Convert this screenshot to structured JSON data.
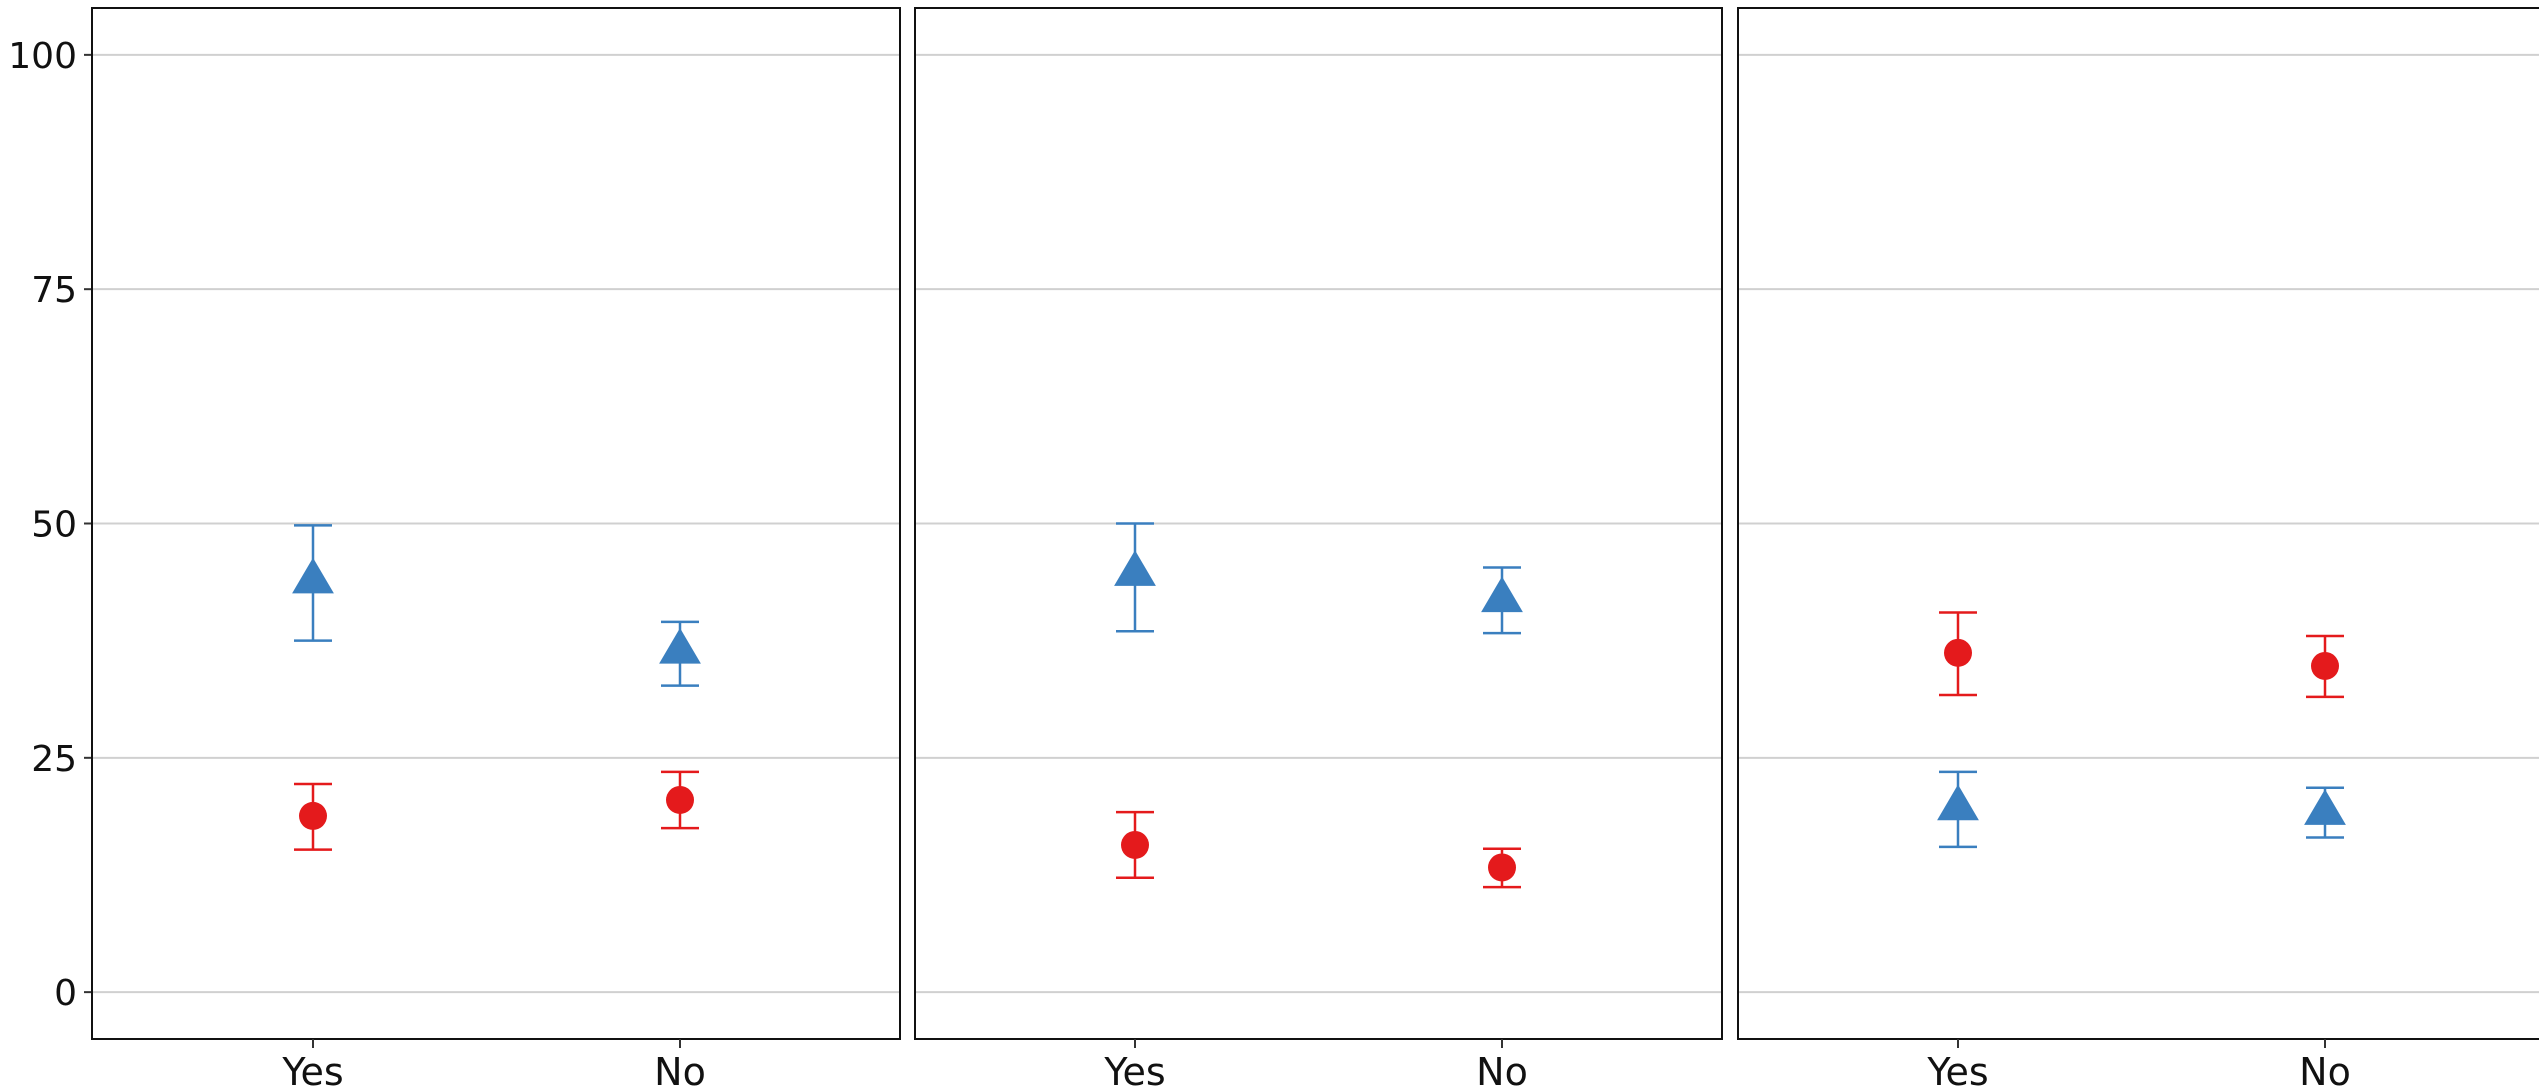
{
  "chart_data": [
    {
      "type": "scatter",
      "title": "",
      "xlabel": "",
      "ylabel": "",
      "categories": [
        "Yes",
        "No"
      ],
      "ylim": [
        -5,
        105
      ],
      "yticks": [
        0,
        25,
        50,
        75,
        100
      ],
      "grid": "horizontal",
      "series": [
        {
          "marker": "triangle",
          "color": "#3a7fbf",
          "values": [
            44,
            36.5
          ],
          "lower": [
            37.5,
            32.7
          ],
          "upper": [
            49.8,
            39.5
          ]
        },
        {
          "marker": "circle",
          "color": "#e41a1c",
          "values": [
            18.8,
            20.5
          ],
          "lower": [
            15.2,
            17.5
          ],
          "upper": [
            22.2,
            23.5
          ]
        }
      ]
    },
    {
      "type": "scatter",
      "title": "",
      "xlabel": "",
      "ylabel": "",
      "categories": [
        "Yes",
        "No"
      ],
      "ylim": [
        -5,
        105
      ],
      "yticks": [
        0,
        25,
        50,
        75,
        100
      ],
      "grid": "horizontal",
      "series": [
        {
          "marker": "triangle",
          "color": "#3a7fbf",
          "values": [
            44.8,
            42
          ],
          "lower": [
            38.5,
            38.3
          ],
          "upper": [
            50,
            45.3
          ]
        },
        {
          "marker": "circle",
          "color": "#e41a1c",
          "values": [
            15.7,
            13.3
          ],
          "lower": [
            12.2,
            11.2
          ],
          "upper": [
            19.2,
            15.3
          ]
        }
      ]
    },
    {
      "type": "scatter",
      "title": "",
      "xlabel": "",
      "ylabel": "",
      "categories": [
        "Yes",
        "No"
      ],
      "ylim": [
        -5,
        105
      ],
      "yticks": [
        0,
        25,
        50,
        75,
        100
      ],
      "grid": "horizontal",
      "series": [
        {
          "marker": "circle",
          "color": "#e41a1c",
          "values": [
            36.2,
            34.8
          ],
          "lower": [
            31.7,
            31.5
          ],
          "upper": [
            40.5,
            38
          ]
        },
        {
          "marker": "triangle",
          "color": "#3a7fbf",
          "values": [
            19.8,
            19.3
          ],
          "lower": [
            15.5,
            16.5
          ],
          "upper": [
            23.5,
            21.8
          ]
        }
      ]
    }
  ]
}
